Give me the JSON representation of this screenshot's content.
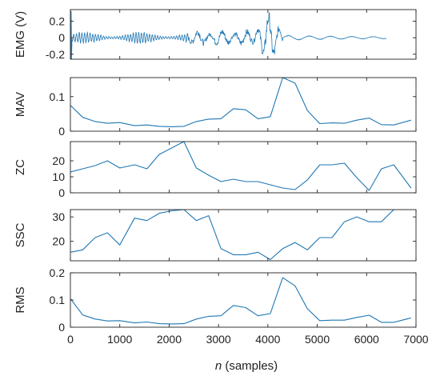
{
  "chart_data": {
    "type": "line",
    "xlabel_italic": "n",
    "xlabel_rest": " (samples)",
    "xlim": [
      0,
      7000
    ],
    "xticks": [
      0,
      1000,
      2000,
      3000,
      4000,
      5000,
      6000,
      7000
    ],
    "xtick_labels": [
      "0",
      "1000",
      "2000",
      "3000",
      "4000",
      "5000",
      "6000",
      "7000"
    ],
    "line_color": "#1f77b4",
    "panels": [
      {
        "id": "emg",
        "ylabel": "EMG (V)",
        "ylim": [
          -0.26,
          0.34
        ],
        "yticks": [
          -0.2,
          0,
          0.2
        ],
        "ytick_labels": [
          "-0.2",
          "0",
          "0.2"
        ],
        "signal_segments": [
          {
            "x_start": 0,
            "x_end": 2400,
            "amplitude": 0.1
          },
          {
            "x_start": 2400,
            "x_end": 3600,
            "amplitude": 0.1
          },
          {
            "x_start": 3600,
            "x_end": 4300,
            "amplitude": 0.3
          },
          {
            "x_start": 4300,
            "x_end": 6400,
            "amplitude": 0.05
          }
        ]
      },
      {
        "id": "mav",
        "ylabel": "MAV",
        "ylim": [
          0,
          0.155
        ],
        "yticks": [
          0,
          0.1
        ],
        "ytick_labels": [
          "0",
          "0.1"
        ],
        "x": [
          0,
          250,
          500,
          750,
          1000,
          1300,
          1550,
          1800,
          2050,
          2300,
          2550,
          2800,
          3050,
          3300,
          3550,
          3800,
          4050,
          4300,
          4550,
          4800,
          5050,
          5300,
          5550,
          5800,
          6050,
          6300,
          6550,
          6900
        ],
        "y": [
          0.075,
          0.04,
          0.028,
          0.023,
          0.025,
          0.016,
          0.018,
          0.014,
          0.013,
          0.014,
          0.028,
          0.035,
          0.036,
          0.065,
          0.062,
          0.036,
          0.042,
          0.155,
          0.139,
          0.06,
          0.022,
          0.024,
          0.023,
          0.032,
          0.038,
          0.019,
          0.018,
          0.032
        ]
      },
      {
        "id": "zc",
        "ylabel": "ZC",
        "ylim": [
          0,
          32
        ],
        "yticks": [
          0,
          10,
          20
        ],
        "ytick_labels": [
          "0",
          "10",
          "20"
        ],
        "x": [
          0,
          250,
          500,
          750,
          1000,
          1300,
          1550,
          1800,
          2050,
          2300,
          2550,
          2800,
          3050,
          3300,
          3550,
          3800,
          4050,
          4300,
          4550,
          4800,
          5050,
          5300,
          5550,
          5800,
          6050,
          6300,
          6550,
          6900
        ],
        "y": [
          13,
          15,
          17,
          20,
          15.5,
          17.5,
          15,
          24,
          28,
          32,
          15.5,
          11,
          7,
          8.5,
          7,
          7,
          5,
          3,
          2,
          8,
          17.5,
          17.5,
          18.5,
          9.5,
          1.5,
          15,
          17.5,
          3
        ]
      },
      {
        "id": "ssc",
        "ylabel": "SSC",
        "ylim": [
          12,
          33
        ],
        "yticks": [
          20,
          30
        ],
        "ytick_labels": [
          "20",
          "30"
        ],
        "x": [
          0,
          250,
          500,
          750,
          1000,
          1300,
          1550,
          1800,
          2050,
          2300,
          2550,
          2800,
          3050,
          3300,
          3550,
          3800,
          4050,
          4300,
          4550,
          4800,
          5050,
          5300,
          5550,
          5800,
          6050,
          6300,
          6550,
          6900
        ],
        "y": [
          15.5,
          16.5,
          21.5,
          23.5,
          18.5,
          29.5,
          28.5,
          31.5,
          32.5,
          33,
          28.5,
          30.5,
          17,
          14.5,
          14.5,
          15.5,
          12.5,
          17,
          19.5,
          16.5,
          21.5,
          21.5,
          28,
          30,
          28,
          28,
          33,
          33
        ]
      },
      {
        "id": "rms",
        "ylabel": "RMS",
        "ylim": [
          0,
          0.2
        ],
        "yticks": [
          0,
          0.1,
          0.2
        ],
        "ytick_labels": [
          "0",
          "0.1",
          "0.2"
        ],
        "x": [
          0,
          250,
          500,
          750,
          1000,
          1300,
          1550,
          1800,
          2050,
          2300,
          2550,
          2800,
          3050,
          3300,
          3550,
          3800,
          4050,
          4300,
          4550,
          4800,
          5050,
          5300,
          5550,
          5800,
          6050,
          6300,
          6550,
          6900
        ],
        "y": [
          0.105,
          0.045,
          0.03,
          0.023,
          0.024,
          0.016,
          0.019,
          0.013,
          0.012,
          0.013,
          0.03,
          0.04,
          0.042,
          0.08,
          0.072,
          0.042,
          0.05,
          0.182,
          0.152,
          0.068,
          0.024,
          0.026,
          0.026,
          0.036,
          0.044,
          0.018,
          0.018,
          0.034
        ]
      }
    ]
  }
}
